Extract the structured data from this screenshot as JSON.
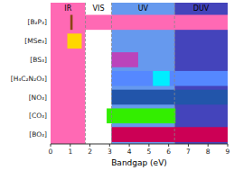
{
  "chart_data": {
    "type": "range_bar",
    "orientation": "horizontal",
    "categories": [
      "[B₂P₃]",
      "[MSe₃]",
      "[BS₃]",
      "[H₄C₂N₂O₃]",
      "[NO₃]",
      "[CO₃]",
      "[BO₃]"
    ],
    "regions": [
      {
        "label": "IR",
        "start": 0,
        "end": 1.77,
        "color": "#FF69B4"
      },
      {
        "label": "VIS",
        "start": 1.77,
        "end": 3.1,
        "color": "#FFFFFF"
      },
      {
        "label": "UV",
        "start": 3.1,
        "end": 6.3,
        "color": "#6699EE"
      },
      {
        "label": "DUV",
        "start": 6.3,
        "end": 9,
        "color": "#4444BB"
      }
    ],
    "dashed_lines": [
      1.77,
      3.1,
      6.3
    ],
    "bars": [
      {
        "group": 0,
        "start": 0.0,
        "end": 9.0,
        "color": "#FF69B4"
      },
      {
        "group": 0,
        "start": 1.0,
        "end": 1.12,
        "color": "#8B4513"
      },
      {
        "group": 1,
        "start": 0.85,
        "end": 1.58,
        "color": "#FFD700"
      },
      {
        "group": 2,
        "start": 3.1,
        "end": 4.45,
        "color": "#BB44BB"
      },
      {
        "group": 3,
        "start": 3.1,
        "end": 9.0,
        "color": "#5588FF"
      },
      {
        "group": 3,
        "start": 5.2,
        "end": 6.05,
        "color": "#00EEFF"
      },
      {
        "group": 4,
        "start": 3.1,
        "end": 9.0,
        "color": "#2255AA"
      },
      {
        "group": 5,
        "start": 2.85,
        "end": 6.35,
        "color": "#33EE00"
      },
      {
        "group": 6,
        "start": 3.1,
        "end": 9.0,
        "color": "#CC0055"
      }
    ],
    "xlabel": "Bandgap (eV)",
    "xlim": [
      0,
      9
    ],
    "xticks": [
      0,
      1,
      2,
      3,
      4,
      5,
      6,
      7,
      8,
      9
    ]
  }
}
